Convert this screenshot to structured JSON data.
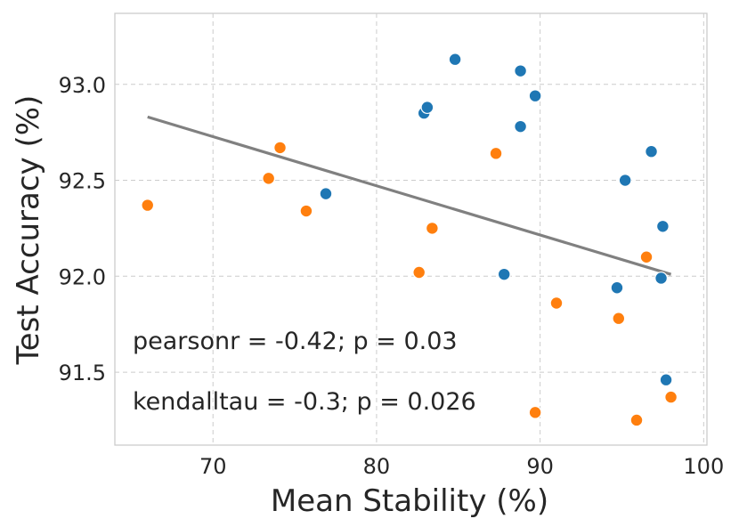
{
  "chart_data": {
    "type": "scatter",
    "xlabel": "Mean Stability (%)",
    "ylabel": "Test Accuracy (%)",
    "xlim": [
      64.0,
      100.2
    ],
    "ylim": [
      91.12,
      93.37
    ],
    "xticks": [
      70,
      80,
      90,
      100
    ],
    "yticks": [
      91.5,
      92.0,
      92.5,
      93.0
    ],
    "xtick_labels": [
      "70",
      "80",
      "90",
      "100"
    ],
    "ytick_labels": [
      "91.5",
      "92.0",
      "92.5",
      "93.0"
    ],
    "grid": true,
    "series": [
      {
        "name": "blue",
        "color": "#1f77b4",
        "points": [
          [
            84.8,
            93.13
          ],
          [
            88.8,
            93.07
          ],
          [
            89.7,
            92.94
          ],
          [
            82.9,
            92.85
          ],
          [
            83.1,
            92.88
          ],
          [
            88.8,
            92.78
          ],
          [
            96.8,
            92.65
          ],
          [
            95.2,
            92.5
          ],
          [
            76.9,
            92.43
          ],
          [
            97.5,
            92.26
          ],
          [
            87.8,
            92.01
          ],
          [
            97.4,
            91.99
          ],
          [
            94.7,
            91.94
          ],
          [
            97.7,
            91.46
          ]
        ]
      },
      {
        "name": "orange",
        "color": "#ff7f0e",
        "points": [
          [
            74.1,
            92.67
          ],
          [
            87.3,
            92.64
          ],
          [
            73.4,
            92.51
          ],
          [
            66.0,
            92.37
          ],
          [
            75.7,
            92.34
          ],
          [
            83.4,
            92.25
          ],
          [
            96.5,
            92.1
          ],
          [
            82.6,
            92.02
          ],
          [
            91.0,
            91.86
          ],
          [
            94.8,
            91.78
          ],
          [
            98.0,
            91.37
          ],
          [
            89.7,
            91.29
          ],
          [
            95.9,
            91.25
          ]
        ]
      }
    ],
    "fit_line": {
      "color": "#808080",
      "x": [
        66.0,
        98.0
      ],
      "y": [
        92.83,
        92.01
      ]
    },
    "annotations": [
      "pearsonr = -0.42; p = 0.03",
      "kendalltau = -0.3; p = 0.026"
    ]
  }
}
